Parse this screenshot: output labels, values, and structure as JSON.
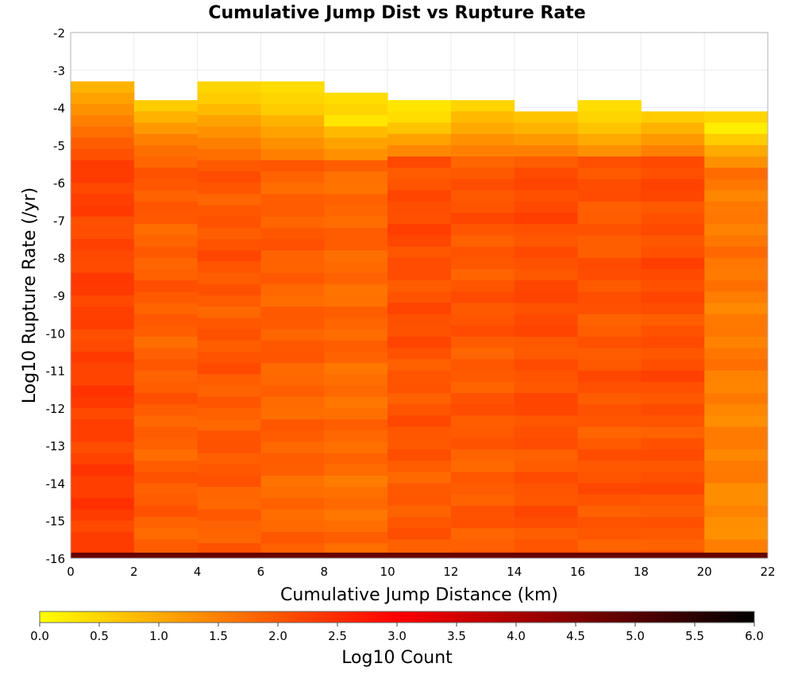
{
  "chart_data": {
    "type": "heatmap",
    "title": "Cumulative Jump Dist vs Rupture Rate",
    "xlabel": "Cumulative Jump Distance (km)",
    "ylabel": "Log10 Rupture Rate (/yr)",
    "xlim": [
      0,
      22
    ],
    "ylim": [
      -16,
      -2
    ],
    "x_ticks": [
      "0",
      "2",
      "4",
      "6",
      "8",
      "10",
      "12",
      "14",
      "16",
      "18",
      "20",
      "22"
    ],
    "y_ticks": [
      "-2",
      "-3",
      "-4",
      "-5",
      "-6",
      "-7",
      "-8",
      "-9",
      "-10",
      "-11",
      "-12",
      "-13",
      "-14",
      "-15",
      "-16"
    ],
    "colorbar": {
      "label": "Log10 Count",
      "min": 0.0,
      "max": 6.0,
      "ticks": [
        "0.0",
        "0.5",
        "1.0",
        "1.5",
        "2.0",
        "2.5",
        "3.0",
        "3.5",
        "4.0",
        "4.5",
        "5.0",
        "5.5",
        "6.0"
      ],
      "colors": [
        "#ffff00",
        "#ff8000",
        "#ff0000",
        "#800000",
        "#000000"
      ]
    },
    "x_bin_edges": [
      0,
      2,
      4,
      6,
      8,
      10,
      12,
      14,
      16,
      18,
      20,
      22
    ],
    "y_bin_width": 0.3,
    "columns": [
      {
        "x_range": [
          0,
          2
        ],
        "y_top": -3.3,
        "top_values": [
          0.9,
          1.1,
          1.3,
          1.5,
          1.7,
          1.9
        ],
        "body_value": 2.2,
        "bottom_value": 2.3
      },
      {
        "x_range": [
          2,
          4
        ],
        "y_top": -3.8,
        "top_values": [
          0.6,
          0.9,
          1.2,
          1.5,
          1.7
        ],
        "body_value": 1.9,
        "bottom_value": 1.9
      },
      {
        "x_range": [
          4,
          6
        ],
        "y_top": -3.3,
        "top_values": [
          0.5,
          0.6,
          0.8,
          1.1,
          1.3,
          1.5,
          1.7
        ],
        "body_value": 2.0,
        "bottom_value": 1.9
      },
      {
        "x_range": [
          6,
          8
        ],
        "y_top": -3.3,
        "top_values": [
          0.4,
          0.5,
          0.6,
          0.9,
          1.1,
          1.3,
          1.5
        ],
        "body_value": 1.9,
        "bottom_value": 1.8
      },
      {
        "x_range": [
          8,
          10
        ],
        "y_top": -3.6,
        "top_values": [
          0.4,
          0.5,
          0.3,
          0.8,
          1.1,
          1.3
        ],
        "body_value": 1.8,
        "bottom_value": 1.7
      },
      {
        "x_range": [
          10,
          12
        ],
        "y_top": -3.8,
        "top_values": [
          0.3,
          0.4,
          0.7,
          1.1,
          1.4
        ],
        "body_value": 2.1,
        "bottom_value": 1.9
      },
      {
        "x_range": [
          12,
          14
        ],
        "y_top": -3.8,
        "top_values": [
          0.5,
          0.8,
          1.0,
          1.3,
          1.5
        ],
        "body_value": 2.0,
        "bottom_value": 1.9
      },
      {
        "x_range": [
          14,
          16
        ],
        "y_top": -4.1,
        "top_values": [
          0.7,
          0.9,
          1.2,
          1.5
        ],
        "body_value": 2.1,
        "bottom_value": 2.0
      },
      {
        "x_range": [
          16,
          18
        ],
        "y_top": -3.8,
        "top_values": [
          0.4,
          0.5,
          0.7,
          1.0,
          1.3
        ],
        "body_value": 2.0,
        "bottom_value": 2.0
      },
      {
        "x_range": [
          18,
          20
        ],
        "y_top": -4.1,
        "top_values": [
          0.6,
          0.9,
          1.2,
          1.5
        ],
        "body_value": 2.1,
        "bottom_value": 2.0
      },
      {
        "x_range": [
          20,
          22
        ],
        "y_top": -4.1,
        "top_values": [
          0.5,
          0.2,
          0.6,
          1.0,
          1.3
        ],
        "body_value": 1.6,
        "bottom_value": 1.4
      }
    ],
    "bottom_row": {
      "y_range": [
        -16,
        -15.85
      ],
      "value": 4.8
    },
    "grid": true
  }
}
